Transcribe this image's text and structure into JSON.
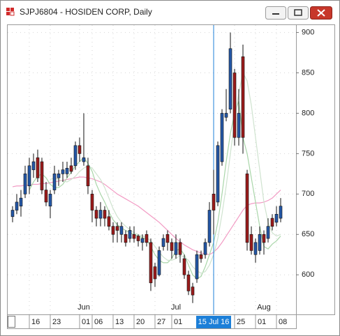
{
  "chart_data": {
    "type": "candlestick",
    "title": "SJPJ6804 - HOSIDEN CORP, Daily",
    "categories": [
      null,
      null,
      null,
      null,
      "16",
      null,
      null,
      null,
      null,
      "23",
      null,
      null,
      null,
      null,
      null,
      null,
      "01",
      null,
      null,
      "06",
      null,
      null,
      null,
      null,
      "13",
      null,
      null,
      null,
      null,
      "20",
      null,
      null,
      null,
      null,
      "27",
      null,
      null,
      null,
      "01",
      null,
      null,
      null,
      null,
      null,
      null,
      null,
      null,
      null,
      null,
      null,
      null,
      null,
      null,
      "25",
      null,
      null,
      null,
      null,
      "01",
      null,
      null,
      null,
      null,
      "08",
      null
    ],
    "months": [
      null,
      null,
      null,
      null,
      null,
      null,
      null,
      null,
      null,
      null,
      null,
      null,
      null,
      null,
      null,
      null,
      null,
      "Jun",
      null,
      null,
      null,
      null,
      null,
      null,
      null,
      null,
      null,
      null,
      null,
      null,
      null,
      null,
      null,
      null,
      null,
      null,
      null,
      null,
      null,
      "Jul",
      null,
      null,
      null,
      null,
      null,
      null,
      null,
      null,
      null,
      null,
      null,
      null,
      null,
      null,
      null,
      null,
      null,
      null,
      null,
      null,
      "Aug",
      null,
      null,
      null,
      null
    ],
    "crosshair": {
      "label": "15 Jul 16",
      "index": 48
    },
    "open": [
      672,
      680,
      685,
      700,
      710,
      730,
      745,
      740,
      705,
      685,
      705,
      720,
      725,
      725,
      735,
      735,
      760,
      740,
      735,
      700,
      680,
      670,
      680,
      672,
      660,
      660,
      650,
      650,
      645,
      650,
      648,
      640,
      650,
      640,
      610,
      600,
      635,
      650,
      640,
      625,
      640,
      620,
      600,
      585,
      595,
      625,
      625,
      640,
      700,
      690,
      740,
      795,
      805,
      850,
      770,
      870,
      725,
      650,
      625,
      630,
      650,
      645,
      670,
      665,
      670
    ],
    "high": [
      685,
      700,
      705,
      735,
      745,
      750,
      755,
      745,
      715,
      705,
      735,
      730,
      740,
      740,
      745,
      765,
      770,
      800,
      745,
      705,
      685,
      690,
      685,
      680,
      665,
      665,
      665,
      655,
      660,
      660,
      650,
      650,
      655,
      645,
      615,
      635,
      650,
      655,
      645,
      650,
      645,
      625,
      605,
      590,
      630,
      630,
      645,
      690,
      730,
      765,
      805,
      830,
      900,
      855,
      830,
      885,
      730,
      660,
      645,
      660,
      655,
      670,
      675,
      685,
      695
    ],
    "low": [
      665,
      675,
      672,
      695,
      700,
      720,
      715,
      700,
      685,
      670,
      700,
      710,
      715,
      720,
      725,
      730,
      740,
      735,
      700,
      665,
      660,
      660,
      660,
      655,
      640,
      640,
      640,
      635,
      640,
      640,
      635,
      630,
      635,
      580,
      585,
      598,
      630,
      630,
      620,
      620,
      615,
      595,
      575,
      565,
      590,
      615,
      620,
      635,
      650,
      685,
      735,
      790,
      800,
      760,
      760,
      750,
      630,
      625,
      615,
      625,
      625,
      640,
      655,
      660,
      665
    ],
    "close": [
      680,
      690,
      695,
      725,
      735,
      740,
      720,
      705,
      690,
      700,
      725,
      725,
      730,
      732,
      728,
      760,
      750,
      745,
      710,
      680,
      670,
      680,
      670,
      660,
      650,
      655,
      660,
      640,
      655,
      645,
      642,
      645,
      640,
      590,
      595,
      630,
      645,
      640,
      630,
      640,
      625,
      600,
      580,
      575,
      625,
      620,
      640,
      680,
      680,
      760,
      800,
      800,
      880,
      770,
      800,
      770,
      640,
      630,
      640,
      650,
      640,
      660,
      660,
      675,
      685
    ],
    "up_color": "#2457a6",
    "down_color": "#9b1b1b",
    "lines": [
      {
        "color": "#f29bc4",
        "values": [
          709,
          710,
          710,
          711,
          711,
          712,
          712,
          713,
          713,
          714,
          715,
          716,
          717,
          718,
          719,
          720,
          721,
          721,
          720,
          719,
          717,
          715,
          712,
          708,
          704,
          700,
          697,
          694,
          691,
          688,
          685,
          681,
          677,
          673,
          669,
          665,
          660,
          655,
          650,
          645,
          641,
          637,
          634,
          631,
          629,
          627,
          626,
          625,
          628,
          633,
          640,
          648,
          656,
          664,
          672,
          680,
          686,
          688,
          689,
          689,
          690,
          692,
          695,
          700,
          705
        ]
      },
      {
        "color": "#a9d6a9",
        "values": [
          null,
          null,
          null,
          null,
          705,
          715,
          722,
          725,
          720,
          712,
          708,
          708,
          712,
          720,
          727,
          735,
          740,
          745,
          738,
          728,
          712,
          700,
          690,
          678,
          668,
          662,
          658,
          655,
          652,
          650,
          648,
          646,
          644,
          635,
          625,
          618,
          615,
          615,
          620,
          630,
          632,
          625,
          612,
          600,
          595,
          598,
          610,
          625,
          640,
          665,
          700,
          740,
          775,
          800,
          815,
          770,
          750,
          720,
          690,
          660,
          635,
          632,
          638,
          642,
          648
        ]
      },
      {
        "color": "#cfe3cf",
        "values": [
          null,
          null,
          null,
          null,
          null,
          null,
          null,
          null,
          null,
          718,
          720,
          718,
          716,
          715,
          718,
          722,
          728,
          732,
          735,
          732,
          725,
          718,
          708,
          695,
          682,
          672,
          665,
          660,
          656,
          652,
          650,
          648,
          646,
          642,
          635,
          628,
          622,
          618,
          618,
          620,
          624,
          622,
          618,
          610,
          605,
          602,
          604,
          612,
          625,
          645,
          675,
          710,
          750,
          790,
          825,
          850,
          840,
          810,
          770,
          730,
          690,
          665,
          652,
          648,
          650
        ]
      }
    ],
    "ylim": [
      551,
      910
    ],
    "yticks": [
      600,
      650,
      700,
      750,
      800,
      850,
      900
    ],
    "grid": true
  }
}
